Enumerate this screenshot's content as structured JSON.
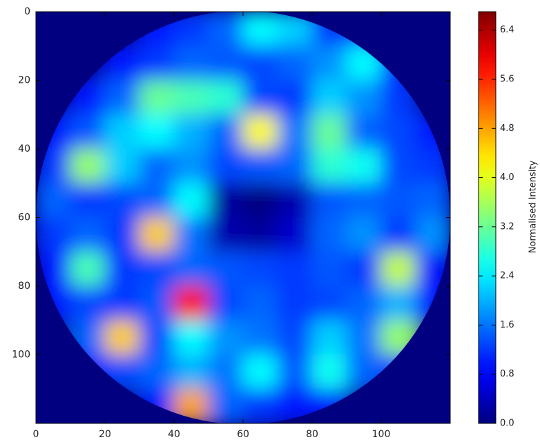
{
  "chart_data": {
    "type": "heatmap",
    "xlim": [
      0,
      120
    ],
    "ylim": [
      120,
      0
    ],
    "xticks": [
      0,
      20,
      40,
      60,
      80,
      100
    ],
    "yticks": [
      0,
      20,
      40,
      60,
      80,
      100
    ],
    "colormap": "jet",
    "clim": [
      0,
      6.7
    ],
    "colorbar_label": "Normalised Intensity",
    "colorbar_ticks": [
      {
        "value": 0,
        "label": "0.0"
      },
      0.8,
      1.6,
      2.4,
      3.2,
      {
        "value": 4,
        "label": "4.0"
      },
      4.8,
      5.6,
      6.4
    ],
    "values": [
      [
        0,
        0,
        0,
        1.0,
        1.2,
        1.5,
        2.5,
        2.2,
        1.2,
        1.0,
        0,
        0
      ],
      [
        0,
        0,
        1.0,
        1.2,
        1.5,
        1.4,
        1.3,
        1.5,
        1.8,
        2.5,
        1.0,
        0
      ],
      [
        0,
        1.0,
        1.5,
        3.2,
        3.0,
        2.8,
        1.3,
        1.2,
        2.2,
        1.8,
        1.2,
        0
      ],
      [
        1.0,
        1.4,
        2.2,
        2.5,
        2.0,
        1.5,
        4.2,
        1.6,
        3.2,
        1.5,
        1.3,
        1.0
      ],
      [
        1.2,
        3.5,
        2.2,
        1.5,
        1.8,
        1.3,
        1.4,
        1.5,
        2.8,
        2.6,
        1.3,
        1.2
      ],
      [
        1.5,
        1.2,
        1.3,
        1.5,
        2.5,
        0.2,
        0,
        0.3,
        1.4,
        1.5,
        1.4,
        1.5
      ],
      [
        1.2,
        1.5,
        1.2,
        4.5,
        1.6,
        0.3,
        0.2,
        0.5,
        1.5,
        1.8,
        1.2,
        1.8
      ],
      [
        1.0,
        3.0,
        1.2,
        1.3,
        1.5,
        1.4,
        1.3,
        1.2,
        1.4,
        1.2,
        3.8,
        1.0
      ],
      [
        1.0,
        1.3,
        1.2,
        1.4,
        5.8,
        1.3,
        1.5,
        1.2,
        1.3,
        1.5,
        2.0,
        1.0
      ],
      [
        0,
        1.5,
        4.5,
        1.3,
        2.5,
        1.8,
        1.6,
        1.3,
        2.2,
        1.6,
        3.5,
        0
      ],
      [
        0,
        1.0,
        1.3,
        1.5,
        2.0,
        1.6,
        2.5,
        1.4,
        2.6,
        1.5,
        1.2,
        0
      ],
      [
        0,
        0,
        0,
        1.0,
        4.8,
        1.5,
        1.2,
        1.0,
        1.0,
        0,
        0,
        0
      ]
    ]
  }
}
